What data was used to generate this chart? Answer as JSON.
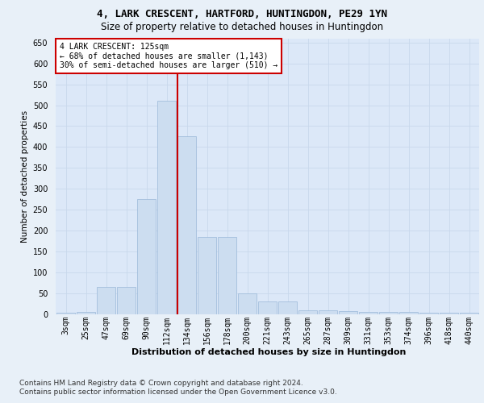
{
  "title1": "4, LARK CRESCENT, HARTFORD, HUNTINGDON, PE29 1YN",
  "title2": "Size of property relative to detached houses in Huntingdon",
  "xlabel": "Distribution of detached houses by size in Huntingdon",
  "ylabel": "Number of detached properties",
  "categories": [
    "3sqm",
    "25sqm",
    "47sqm",
    "69sqm",
    "90sqm",
    "112sqm",
    "134sqm",
    "156sqm",
    "178sqm",
    "200sqm",
    "221sqm",
    "243sqm",
    "265sqm",
    "287sqm",
    "309sqm",
    "331sqm",
    "353sqm",
    "374sqm",
    "396sqm",
    "418sqm",
    "440sqm"
  ],
  "values": [
    3,
    5,
    65,
    65,
    275,
    510,
    425,
    185,
    185,
    50,
    30,
    30,
    10,
    10,
    8,
    5,
    5,
    5,
    4,
    4,
    4
  ],
  "bar_color": "#ccddf0",
  "bar_edge_color": "#9ab8d8",
  "grid_color": "#c8d8ec",
  "bg_color": "#e8f0f8",
  "plot_bg_color": "#dce8f8",
  "vline_x_index": 5.55,
  "vline_color": "#cc0000",
  "annotation_text": "4 LARK CRESCENT: 125sqm\n← 68% of detached houses are smaller (1,143)\n30% of semi-detached houses are larger (510) →",
  "annotation_box_color": "#cc0000",
  "ylim": [
    0,
    660
  ],
  "yticks": [
    0,
    50,
    100,
    150,
    200,
    250,
    300,
    350,
    400,
    450,
    500,
    550,
    600,
    650
  ],
  "footnote1": "Contains HM Land Registry data © Crown copyright and database right 2024.",
  "footnote2": "Contains public sector information licensed under the Open Government Licence v3.0.",
  "title1_fontsize": 9,
  "title2_fontsize": 8.5,
  "xlabel_fontsize": 8,
  "ylabel_fontsize": 7.5,
  "tick_fontsize": 7,
  "annotation_fontsize": 7,
  "footnote_fontsize": 6.5
}
